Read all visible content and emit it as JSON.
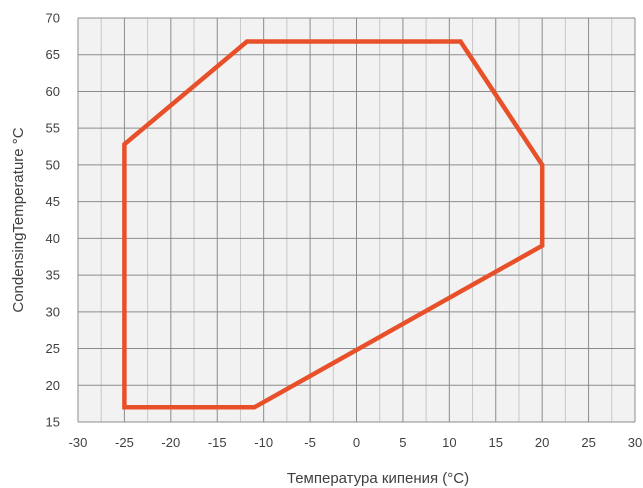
{
  "chart_data": {
    "type": "line",
    "title": "",
    "xlabel": "Температура кипения (°C)",
    "ylabel": "CondensingTemperature °C",
    "xlim": [
      -30,
      30
    ],
    "ylim": [
      15,
      70
    ],
    "xticks": [
      -30,
      -25,
      -20,
      -15,
      -10,
      -5,
      0,
      5,
      10,
      15,
      20,
      25,
      30
    ],
    "yticks": [
      15,
      20,
      25,
      30,
      35,
      40,
      45,
      50,
      55,
      60,
      65,
      70
    ],
    "x_minor_step": 2.5,
    "grid": true,
    "legend": "none",
    "series": [
      {
        "color": "#e8502a",
        "closed": true,
        "points": [
          [
            -25,
            17
          ],
          [
            -25,
            52.8
          ],
          [
            -11.8,
            66.8
          ],
          [
            11.2,
            66.8
          ],
          [
            20,
            50
          ],
          [
            20,
            39
          ],
          [
            -11,
            17
          ],
          [
            -25,
            17
          ]
        ]
      }
    ]
  }
}
